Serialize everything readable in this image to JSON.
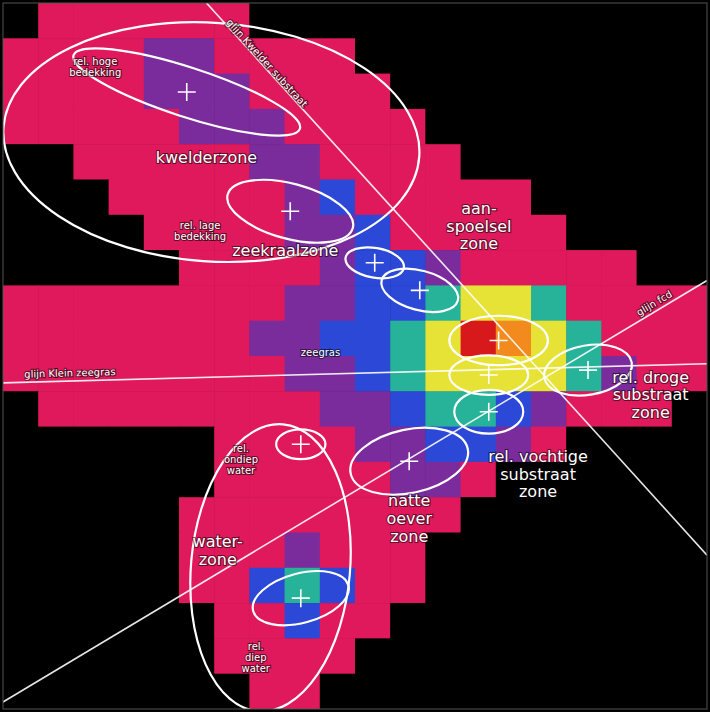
{
  "chart_data": {
    "type": "heatmap",
    "tick_labels": false,
    "xlim": [
      0,
      100
    ],
    "ylim": [
      0,
      100
    ],
    "colors": [
      "#000000",
      "#e0195c",
      "#7b2c9c",
      "#2b48d6",
      "#27b39a",
      "#e6e236",
      "#f28a1e",
      "#d7191c"
    ],
    "cells": [
      [
        0,
        1,
        1,
        1,
        1,
        1,
        1,
        0,
        0,
        0,
        0,
        0,
        0,
        0,
        0,
        0,
        0,
        0,
        0,
        0
      ],
      [
        1,
        1,
        1,
        1,
        2,
        2,
        1,
        1,
        1,
        1,
        0,
        0,
        0,
        0,
        0,
        0,
        0,
        0,
        0,
        0
      ],
      [
        1,
        1,
        1,
        1,
        2,
        2,
        2,
        1,
        1,
        1,
        1,
        0,
        0,
        0,
        0,
        0,
        0,
        0,
        0,
        0
      ],
      [
        1,
        1,
        1,
        1,
        1,
        2,
        2,
        2,
        1,
        1,
        1,
        1,
        0,
        0,
        0,
        0,
        0,
        0,
        0,
        0
      ],
      [
        0,
        0,
        1,
        1,
        1,
        1,
        1,
        2,
        2,
        1,
        1,
        1,
        1,
        0,
        0,
        0,
        0,
        0,
        0,
        0
      ],
      [
        0,
        0,
        0,
        1,
        1,
        1,
        1,
        1,
        2,
        3,
        1,
        1,
        1,
        1,
        1,
        0,
        0,
        0,
        0,
        0
      ],
      [
        0,
        0,
        0,
        0,
        1,
        1,
        1,
        1,
        2,
        2,
        3,
        1,
        1,
        1,
        1,
        1,
        0,
        0,
        0,
        0
      ],
      [
        0,
        0,
        0,
        0,
        0,
        1,
        1,
        1,
        1,
        2,
        3,
        3,
        2,
        1,
        1,
        1,
        1,
        1,
        0,
        0
      ],
      [
        1,
        1,
        1,
        1,
        1,
        1,
        1,
        1,
        2,
        2,
        3,
        3,
        4,
        5,
        5,
        4,
        1,
        1,
        1,
        1
      ],
      [
        1,
        1,
        1,
        1,
        1,
        1,
        1,
        2,
        2,
        3,
        3,
        4,
        5,
        7,
        6,
        5,
        4,
        1,
        1,
        1
      ],
      [
        1,
        1,
        1,
        1,
        1,
        1,
        1,
        1,
        2,
        2,
        3,
        4,
        5,
        5,
        5,
        5,
        4,
        2,
        1,
        1
      ],
      [
        0,
        1,
        1,
        1,
        1,
        1,
        1,
        1,
        1,
        2,
        2,
        3,
        4,
        4,
        3,
        2,
        1,
        1,
        1,
        0
      ],
      [
        0,
        0,
        0,
        0,
        0,
        0,
        1,
        1,
        1,
        1,
        2,
        2,
        3,
        3,
        2,
        1,
        0,
        0,
        0,
        0
      ],
      [
        0,
        0,
        0,
        0,
        0,
        0,
        1,
        1,
        1,
        1,
        1,
        2,
        2,
        1,
        0,
        0,
        0,
        0,
        0,
        0
      ],
      [
        0,
        0,
        0,
        0,
        0,
        1,
        1,
        1,
        1,
        1,
        1,
        1,
        1,
        0,
        0,
        0,
        0,
        0,
        0,
        0
      ],
      [
        0,
        0,
        0,
        0,
        0,
        1,
        1,
        1,
        2,
        1,
        1,
        1,
        0,
        0,
        0,
        0,
        0,
        0,
        0,
        0
      ],
      [
        0,
        0,
        0,
        0,
        0,
        1,
        1,
        3,
        4,
        3,
        1,
        1,
        0,
        0,
        0,
        0,
        0,
        0,
        0,
        0
      ],
      [
        0,
        0,
        0,
        0,
        0,
        0,
        1,
        1,
        3,
        1,
        1,
        0,
        0,
        0,
        0,
        0,
        0,
        0,
        0,
        0
      ],
      [
        0,
        0,
        0,
        0,
        0,
        0,
        1,
        1,
        1,
        1,
        0,
        0,
        0,
        0,
        0,
        0,
        0,
        0,
        0,
        0
      ],
      [
        0,
        0,
        0,
        0,
        0,
        0,
        0,
        1,
        1,
        0,
        0,
        0,
        0,
        0,
        0,
        0,
        0,
        0,
        0,
        0
      ]
    ],
    "lines": [
      {
        "name": "glijn Kwelder substraat",
        "x": [
          28.9,
          100
        ],
        "y": [
          100,
          21.8
        ],
        "label_x": 37.5,
        "label_y": 91.5
      },
      {
        "name": "glijn Klein zeegras",
        "x": [
          0,
          100
        ],
        "y": [
          46.2,
          48.9
        ],
        "label_x": 9.5,
        "label_y": 47.6
      },
      {
        "name": "glijn fcd",
        "x": [
          0,
          100
        ],
        "y": [
          1.0,
          60.7
        ],
        "label_x": 92.5,
        "label_y": 57.5
      }
    ],
    "regions": [
      {
        "cx": 29.6,
        "cy": 80.3,
        "rx": 29.6,
        "ry": 16.9,
        "angle": -4
      },
      {
        "cx": 26.1,
        "cy": 87.4,
        "rx": 16.9,
        "ry": 3.5,
        "angle": -18,
        "marker": "cross"
      },
      {
        "cx": 40.8,
        "cy": 70.5,
        "rx": 9.2,
        "ry": 3.9,
        "angle": -15,
        "marker": "cross"
      },
      {
        "cx": 52.8,
        "cy": 63.2,
        "rx": 4.2,
        "ry": 2.1,
        "angle": -10,
        "marker": "cross"
      },
      {
        "cx": 59.2,
        "cy": 59.3,
        "rx": 5.6,
        "ry": 2.8,
        "angle": -15,
        "marker": "cross"
      },
      {
        "cx": 70.4,
        "cy": 52.2,
        "rx": 7.0,
        "ry": 3.5,
        "angle": 0,
        "marker": "cross"
      },
      {
        "cx": 69.0,
        "cy": 47.3,
        "rx": 5.6,
        "ry": 2.8,
        "angle": 0,
        "marker": "cross"
      },
      {
        "cx": 83.1,
        "cy": 48.0,
        "rx": 6.3,
        "ry": 3.5,
        "angle": 10,
        "marker": "cross"
      },
      {
        "cx": 69.0,
        "cy": 42.1,
        "rx": 4.9,
        "ry": 3.1,
        "angle": 0,
        "marker": "cross"
      },
      {
        "cx": 57.7,
        "cy": 35.1,
        "rx": 8.5,
        "ry": 4.5,
        "angle": 12,
        "marker": "cross"
      },
      {
        "cx": 38.0,
        "cy": 20.0,
        "rx": 11.3,
        "ry": 20.4,
        "angle": -5
      },
      {
        "cx": 42.3,
        "cy": 37.5,
        "rx": 3.5,
        "ry": 2.1,
        "angle": 0,
        "marker": "cross"
      },
      {
        "cx": 42.3,
        "cy": 15.7,
        "rx": 7.0,
        "ry": 3.5,
        "angle": 15,
        "marker": "cross"
      }
    ],
    "zone_labels": [
      {
        "text": "kwelderzone",
        "x": 28.9,
        "y": 78.2
      },
      {
        "text": "aan-\nspoelsel\nzone",
        "x": 67.6,
        "y": 68.4
      },
      {
        "text": "zeekraalzone",
        "x": 40.1,
        "y": 64.9
      },
      {
        "text": "rel. droge\nsubstraat\nzone",
        "x": 92.0,
        "y": 44.5
      },
      {
        "text": "rel. vochtige\nsubstraat\nzone",
        "x": 76.0,
        "y": 33.3
      },
      {
        "text": "natte\noever\nzone",
        "x": 57.7,
        "y": 27.0
      },
      {
        "text": "water-\nzone",
        "x": 30.5,
        "y": 22.5
      }
    ],
    "sub_labels": [
      {
        "text": "rel. hoge\nbedekking",
        "x": 13.1,
        "y": 91.0
      },
      {
        "text": "rel. lage\nbedekking",
        "x": 28.0,
        "y": 67.7
      },
      {
        "text": "rel.\nondiep\nwater",
        "x": 33.8,
        "y": 35.4
      },
      {
        "text": "rel.\ndiep\nwater",
        "x": 35.9,
        "y": 7.3
      },
      {
        "text": "zeegras",
        "x": 45.1,
        "y": 50.5
      }
    ]
  }
}
